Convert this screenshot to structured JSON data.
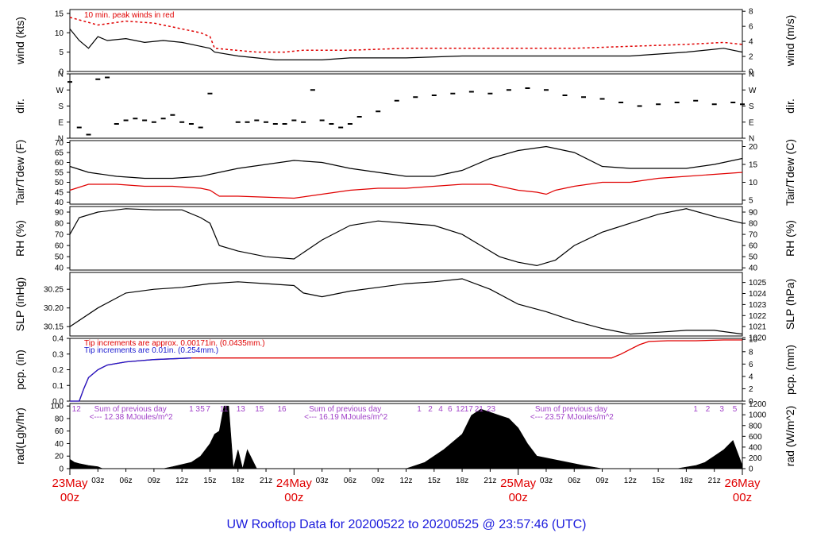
{
  "footer": "UW Rooftop Data for 20200522  to  20200525 @ 23:57:46  (UTC)",
  "colors": {
    "main": "#000000",
    "red": "#e00000",
    "blue": "#1a1ad0",
    "purple": "#a040c8",
    "footer": "#1a1adc"
  },
  "chart_data": [
    {
      "type": "line",
      "ylabel_left": "wind (kts)",
      "ylabel_right": "wind (m/s)",
      "annotation": "10 min. peak winds in red",
      "ylim_left": [
        0,
        16
      ],
      "yticks_left": [
        "0",
        "5",
        "10",
        "15"
      ],
      "ylim_right_ms": [
        0,
        8.23
      ],
      "yticks_right": [
        "0",
        "2",
        "4",
        "6",
        "8"
      ],
      "series": [
        {
          "name": "10 min. peak winds",
          "color": "#e00000",
          "style": "dash",
          "x": [
            0,
            3,
            6,
            9,
            12,
            14,
            15,
            15.5,
            20,
            23,
            25,
            30,
            36,
            42,
            48,
            54,
            60,
            66,
            70,
            72
          ],
          "y": [
            14,
            12,
            13,
            12.5,
            11,
            10,
            9,
            6,
            5,
            5,
            5.5,
            5.5,
            6,
            6,
            6,
            6,
            6.5,
            7,
            7.5,
            7
          ]
        },
        {
          "name": "wind",
          "color": "#000000",
          "x": [
            0,
            1,
            2,
            3,
            4,
            6,
            8,
            10,
            12,
            14,
            15,
            15.5,
            18,
            20,
            22,
            24,
            27,
            30,
            33,
            36,
            42,
            48,
            54,
            60,
            66,
            70,
            72
          ],
          "y": [
            11,
            8,
            6,
            9,
            8,
            8.5,
            7.5,
            8,
            7.5,
            6.5,
            6,
            5,
            4,
            3.5,
            3,
            3,
            3,
            3.5,
            3.5,
            3.5,
            4,
            4,
            4,
            4,
            5,
            6,
            5
          ]
        }
      ]
    },
    {
      "type": "scatter",
      "ylabel_left": "dir.",
      "ylabel_right": "dir.",
      "ylim": [
        0,
        360
      ],
      "yticks": [
        "N",
        "E",
        "S",
        "W",
        "N"
      ],
      "x": [
        0,
        1,
        2,
        3,
        4,
        5,
        6,
        7,
        8,
        9,
        10,
        11,
        12,
        13,
        14,
        15,
        18,
        19,
        20,
        21,
        22,
        23,
        24,
        25,
        26,
        27,
        28,
        29,
        30,
        31,
        33,
        35,
        37,
        39,
        41,
        43,
        45,
        47,
        49,
        51,
        53,
        55,
        57,
        59,
        61,
        63,
        65,
        67,
        69,
        71,
        72
      ],
      "y": [
        315,
        60,
        20,
        330,
        340,
        80,
        100,
        110,
        100,
        90,
        110,
        130,
        90,
        80,
        60,
        250,
        90,
        90,
        100,
        90,
        80,
        80,
        100,
        90,
        270,
        100,
        80,
        60,
        80,
        120,
        150,
        210,
        230,
        240,
        250,
        260,
        250,
        270,
        280,
        270,
        240,
        230,
        220,
        200,
        180,
        190,
        200,
        210,
        190,
        200,
        190
      ]
    },
    {
      "type": "line",
      "ylabel_left": "Tair/Tdew (F)",
      "ylabel_right": "Tair/Tdew (C)",
      "ylim_left": [
        39,
        71
      ],
      "yticks_left": [
        "40",
        "45",
        "50",
        "55",
        "60",
        "65",
        "70"
      ],
      "yticks_right": [
        "5",
        "10",
        "15",
        "20"
      ],
      "series": [
        {
          "name": "Tair",
          "color": "#000000",
          "x": [
            0,
            2,
            5,
            8,
            11,
            14,
            16,
            18,
            24,
            27,
            30,
            33,
            36,
            39,
            42,
            45,
            48,
            51,
            54,
            57,
            60,
            63,
            66,
            69,
            72
          ],
          "y": [
            58,
            55,
            53,
            52,
            52,
            53,
            55,
            57,
            61,
            60,
            57,
            55,
            53,
            53,
            56,
            62,
            66,
            68,
            65,
            58,
            57,
            57,
            57,
            59,
            62
          ]
        },
        {
          "name": "Tdew",
          "color": "#e00000",
          "x": [
            0,
            2,
            5,
            8,
            11,
            14,
            15,
            16,
            18,
            24,
            27,
            30,
            33,
            36,
            39,
            42,
            45,
            48,
            50,
            51,
            52,
            54,
            57,
            60,
            63,
            66,
            69,
            72
          ],
          "y": [
            46,
            49,
            49,
            48,
            48,
            47,
            46,
            43,
            43,
            42,
            44,
            46,
            47,
            47,
            48,
            49,
            49,
            46,
            45,
            44,
            46,
            48,
            50,
            50,
            52,
            53,
            54,
            55
          ]
        }
      ]
    },
    {
      "type": "line",
      "ylabel_left": "RH (%)",
      "ylabel_right": "RH (%)",
      "ylim": [
        38,
        95
      ],
      "yticks": [
        "40",
        "50",
        "60",
        "70",
        "80",
        "90"
      ],
      "series": [
        {
          "name": "RH",
          "color": "#000000",
          "x": [
            0,
            1,
            3,
            6,
            9,
            12,
            14,
            15,
            16,
            18,
            21,
            24,
            27,
            30,
            33,
            36,
            39,
            42,
            44,
            46,
            48,
            50,
            52,
            54,
            57,
            60,
            63,
            66,
            69,
            72
          ],
          "y": [
            70,
            85,
            90,
            93,
            92,
            92,
            85,
            80,
            60,
            55,
            50,
            48,
            65,
            78,
            82,
            80,
            78,
            70,
            60,
            50,
            45,
            42,
            47,
            60,
            72,
            80,
            88,
            93,
            86,
            80
          ]
        }
      ]
    },
    {
      "type": "line",
      "ylabel_left": "SLP (inHg)",
      "ylabel_right": "SLP (hPa)",
      "ylim_left": [
        30.125,
        30.295
      ],
      "yticks_left": [
        "30.15",
        "30.20",
        "30.25"
      ],
      "yticks_right": [
        "1020",
        "1021",
        "1022",
        "1023",
        "1024",
        "1025"
      ],
      "series": [
        {
          "name": "SLP",
          "color": "#000000",
          "x": [
            0,
            3,
            6,
            9,
            12,
            15,
            18,
            21,
            24,
            25,
            27,
            30,
            33,
            36,
            39,
            42,
            45,
            48,
            51,
            54,
            57,
            60,
            63,
            66,
            69,
            72
          ],
          "y": [
            30.15,
            30.2,
            30.24,
            30.25,
            30.255,
            30.265,
            30.27,
            30.265,
            30.26,
            30.24,
            30.23,
            30.245,
            30.255,
            30.265,
            30.27,
            30.278,
            30.25,
            30.21,
            30.19,
            30.165,
            30.145,
            30.13,
            30.135,
            30.14,
            30.14,
            30.13
          ]
        }
      ]
    },
    {
      "type": "line",
      "ylabel_left": "pcp. (in)",
      "ylabel_right": "pcp. (mm)",
      "ylim_left": [
        0,
        0.4
      ],
      "yticks_left": [
        "0.0",
        "0.1",
        "0.2",
        "0.3",
        "0.4"
      ],
      "yticks_right": [
        "0",
        "2",
        "4",
        "6",
        "8",
        "10"
      ],
      "annotations": [
        {
          "text": "Tip increments are approx. 0.00171in. (0.0435mm.)",
          "color": "#e00000"
        },
        {
          "text": "Tip increments are 0.01in. (0.254mm.)",
          "color": "#1a1ad0"
        }
      ],
      "series": [
        {
          "name": "pcp",
          "color": "#e00000",
          "x": [
            0,
            1,
            1.5,
            2,
            3,
            4,
            5,
            6,
            8,
            9,
            11,
            13,
            58,
            59,
            60,
            61,
            62,
            64,
            67,
            70,
            72
          ],
          "y": [
            0,
            0,
            0.08,
            0.15,
            0.2,
            0.23,
            0.24,
            0.25,
            0.26,
            0.265,
            0.27,
            0.275,
            0.275,
            0.3,
            0.33,
            0.36,
            0.38,
            0.385,
            0.385,
            0.39,
            0.39
          ]
        },
        {
          "name": "pcp 0.01in",
          "color": "#1a1ad0",
          "x": [
            0,
            1,
            1.5,
            2,
            3,
            4,
            5,
            6,
            8,
            9,
            11,
            13
          ],
          "y": [
            0,
            0,
            0.08,
            0.15,
            0.2,
            0.23,
            0.24,
            0.25,
            0.26,
            0.265,
            0.27,
            0.275
          ]
        }
      ]
    },
    {
      "type": "area",
      "ylabel_left": "rad(Lgly/hr)",
      "ylabel_right": "rad (W/m^2)",
      "ylim_left": [
        0,
        104
      ],
      "yticks_left": [
        "0",
        "20",
        "40",
        "60",
        "80",
        "100"
      ],
      "yticks_right": [
        "0",
        "200",
        "400",
        "600",
        "800",
        "1000",
        "1200"
      ],
      "hour_labels": [
        {
          "x": 0.7,
          "t": "12"
        },
        {
          "x": 13,
          "t": "1"
        },
        {
          "x": 13.7,
          "t": "3"
        },
        {
          "x": 14.2,
          "t": "5"
        },
        {
          "x": 14.8,
          "t": "7"
        },
        {
          "x": 16.5,
          "t": "11"
        },
        {
          "x": 18.3,
          "t": "13"
        },
        {
          "x": 20.3,
          "t": "15"
        },
        {
          "x": 22.7,
          "t": "16"
        },
        {
          "x": 37.4,
          "t": "1"
        },
        {
          "x": 38.6,
          "t": "2"
        },
        {
          "x": 39.7,
          "t": "4"
        },
        {
          "x": 40.7,
          "t": "6"
        },
        {
          "x": 41.8,
          "t": "12"
        },
        {
          "x": 42.7,
          "t": "17"
        },
        {
          "x": 43.8,
          "t": "21"
        },
        {
          "x": 45.1,
          "t": "23"
        },
        {
          "x": 67.0,
          "t": "1"
        },
        {
          "x": 68.3,
          "t": "2"
        },
        {
          "x": 69.8,
          "t": "3"
        },
        {
          "x": 71.2,
          "t": "5"
        }
      ],
      "daily_sums": [
        {
          "x": 2.6,
          "line1": "Sum of previous day",
          "line2": "<--- 12.38 MJoules/m^2"
        },
        {
          "x": 25.6,
          "line1": "Sum of previous day",
          "line2": "<--- 16.19 MJoules/m^2"
        },
        {
          "x": 49.8,
          "line1": "Sum of previous day",
          "line2": "<--- 23.57 MJoules/m^2"
        }
      ],
      "x": [
        0,
        0.5,
        1,
        2,
        3,
        3.5,
        10,
        11,
        13,
        14,
        15,
        15.5,
        16,
        16.5,
        17,
        17.5,
        18,
        18.5,
        19,
        20,
        21,
        21.5,
        22,
        23,
        24,
        25,
        30,
        31,
        32,
        33,
        34,
        36,
        38,
        40,
        42,
        43,
        44,
        45,
        46,
        47,
        48,
        49,
        50,
        55,
        57,
        59,
        61,
        63,
        65,
        67,
        68,
        69,
        70,
        71,
        72
      ],
      "y": [
        15,
        10,
        8,
        5,
        3,
        0,
        0,
        3,
        10,
        20,
        40,
        55,
        60,
        100,
        100,
        0,
        30,
        0,
        30,
        0,
        0,
        0,
        0,
        0,
        0,
        0,
        0,
        0,
        0,
        0,
        0,
        0,
        10,
        30,
        55,
        85,
        95,
        90,
        85,
        80,
        65,
        40,
        20,
        5,
        0,
        0,
        0,
        0,
        0,
        5,
        10,
        20,
        30,
        45,
        5
      ]
    }
  ],
  "x_axis": {
    "xlim_hours": [
      0,
      72
    ],
    "minor_ticks": [
      {
        "h": 3,
        "t": "03z"
      },
      {
        "h": 6,
        "t": "06z"
      },
      {
        "h": 9,
        "t": "09z"
      },
      {
        "h": 12,
        "t": "12z"
      },
      {
        "h": 15,
        "t": "15z"
      },
      {
        "h": 18,
        "t": "18z"
      },
      {
        "h": 21,
        "t": "21z"
      },
      {
        "h": 27,
        "t": "03z"
      },
      {
        "h": 30,
        "t": "06z"
      },
      {
        "h": 33,
        "t": "09z"
      },
      {
        "h": 36,
        "t": "12z"
      },
      {
        "h": 39,
        "t": "15z"
      },
      {
        "h": 42,
        "t": "18z"
      },
      {
        "h": 45,
        "t": "21z"
      },
      {
        "h": 51,
        "t": "03z"
      },
      {
        "h": 54,
        "t": "06z"
      },
      {
        "h": 57,
        "t": "09z"
      },
      {
        "h": 60,
        "t": "12z"
      },
      {
        "h": 63,
        "t": "15z"
      },
      {
        "h": 66,
        "t": "18z"
      },
      {
        "h": 69,
        "t": "21z"
      }
    ],
    "major_ticks": [
      {
        "h": 0,
        "date": "23May",
        "time": "00z"
      },
      {
        "h": 24,
        "date": "24May",
        "time": "00z"
      },
      {
        "h": 48,
        "date": "25May",
        "time": "00z"
      },
      {
        "h": 72,
        "date": "26May",
        "time": "00z"
      }
    ]
  }
}
